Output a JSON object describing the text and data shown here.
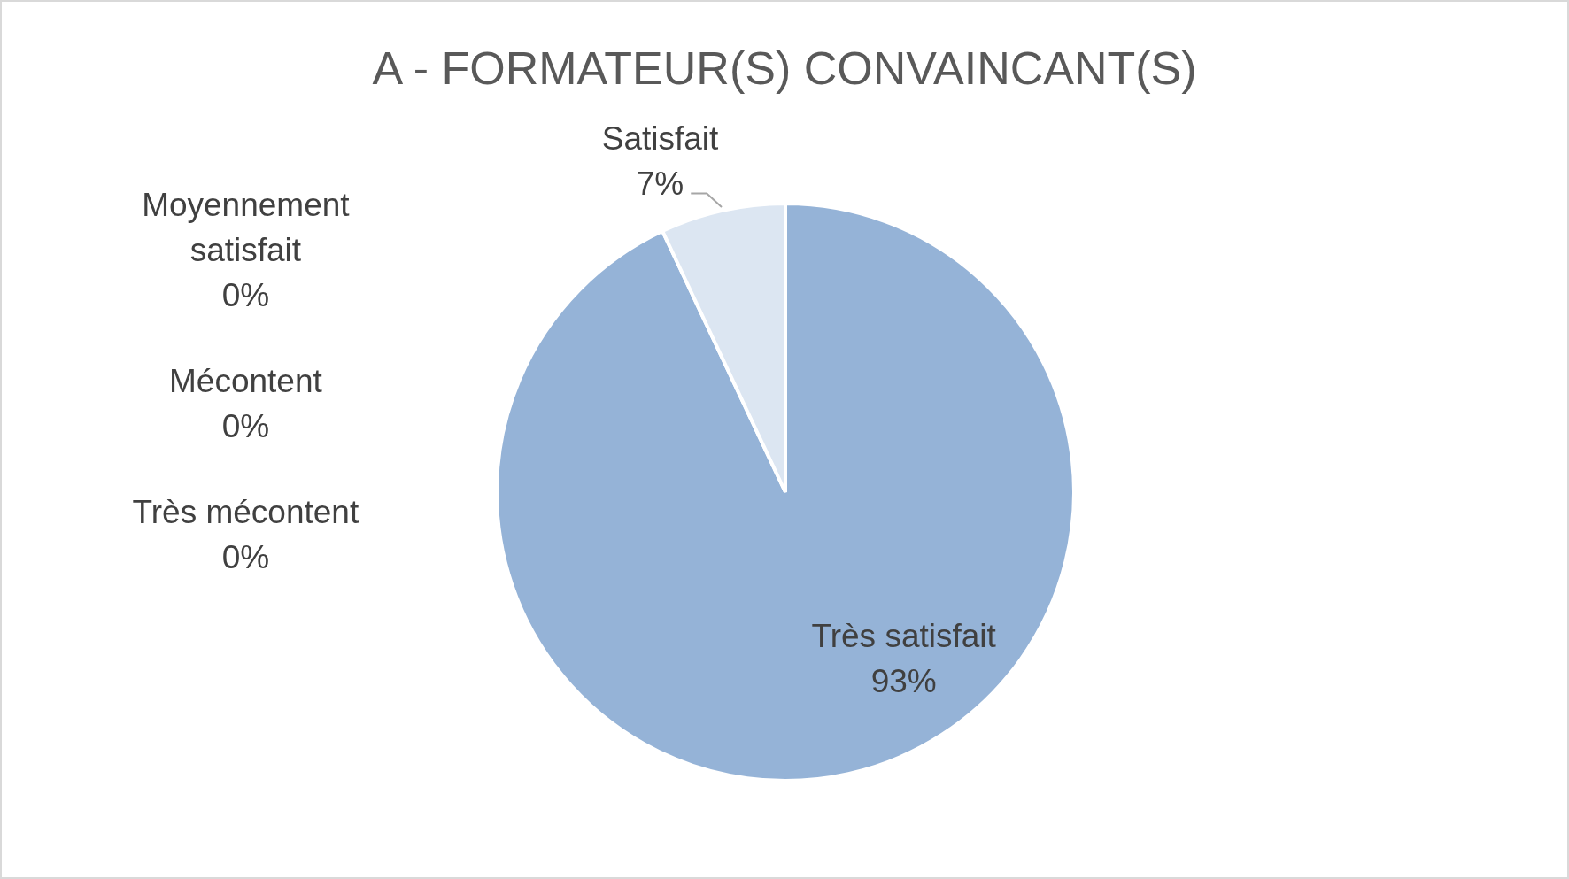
{
  "chart_data": {
    "type": "pie",
    "title": "A - FORMATEUR(S) CONVAINCANT(S)",
    "categories": [
      "Très satisfait",
      "Satisfait",
      "Moyennement satisfait",
      "Mécontent",
      "Très mécontent"
    ],
    "values": [
      93,
      7,
      0,
      0,
      0
    ],
    "colors": [
      "#95b3d7",
      "#dce6f2",
      "#b9cde5",
      "#4f81bd",
      "#376092"
    ],
    "value_labels": [
      "93%",
      "7%",
      "0%",
      "0%",
      "0%"
    ]
  }
}
